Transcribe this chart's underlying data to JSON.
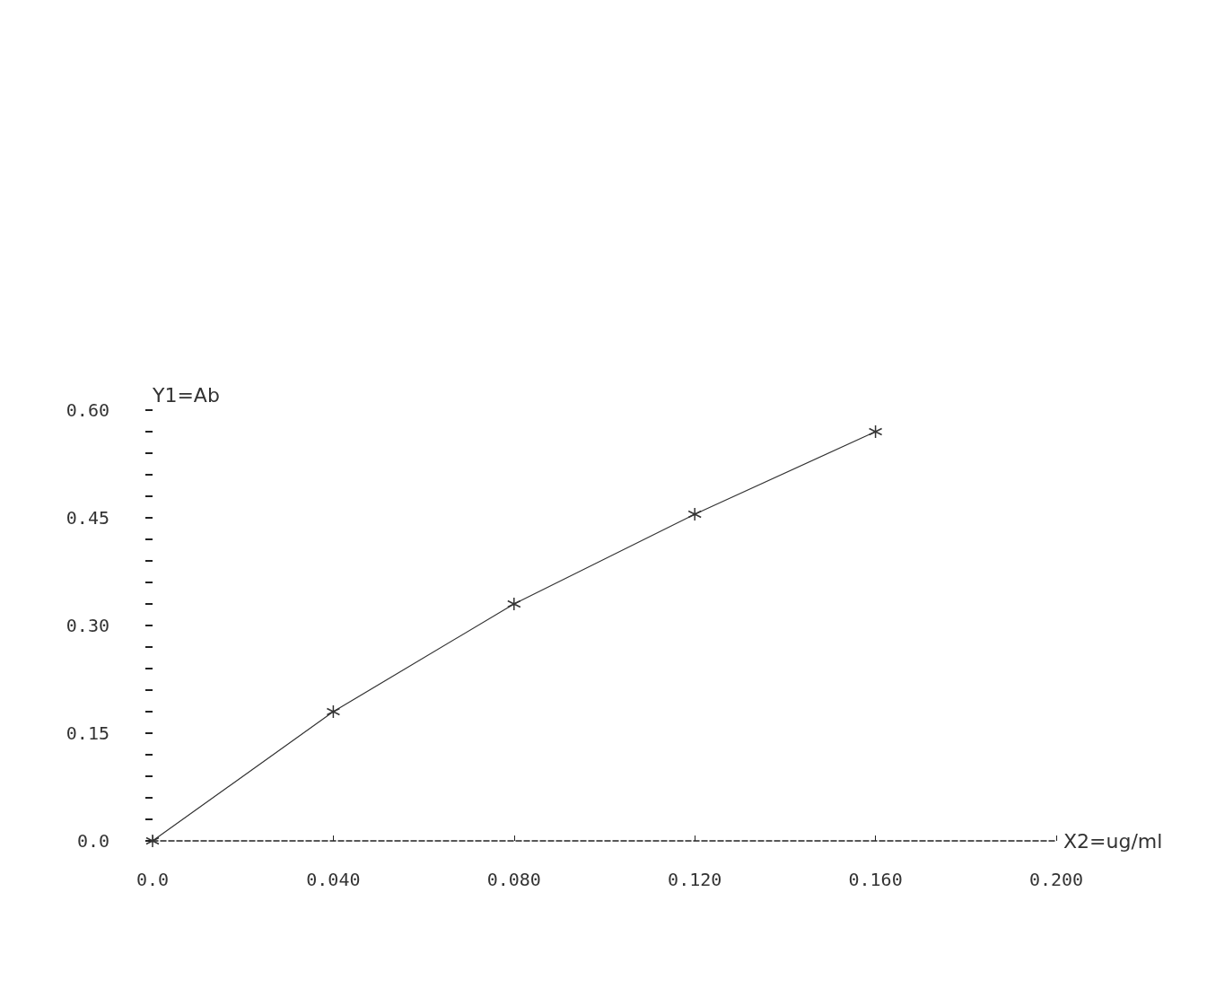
{
  "chart_data": {
    "type": "line",
    "xlabel": "X2=ug/ml",
    "ylabel": "Y1=Ab",
    "x": [
      0,
      0.04,
      0.08,
      0.12,
      0.16
    ],
    "series": [
      {
        "color": "#333333",
        "values": [
          0.0,
          0.18,
          0.33,
          0.455,
          0.57
        ]
      }
    ],
    "xlim": [
      0,
      0.2
    ],
    "xticks": [
      {
        "value": 0,
        "label": "0.0"
      },
      {
        "value": 0.04,
        "label": "0.040"
      },
      {
        "value": 0.08,
        "label": "0.080"
      },
      {
        "value": 0.12,
        "label": "0.120"
      },
      {
        "value": 0.16,
        "label": "0.160"
      },
      {
        "value": 0.2,
        "label": "0.200"
      }
    ],
    "ylim": [
      0,
      0.6
    ],
    "yticks": [
      {
        "value": 0,
        "label": "0.0"
      },
      0.15,
      {
        "value": 0.3,
        "label": "0.30"
      },
      0.45,
      {
        "value": 0.6,
        "label": "0.60"
      }
    ],
    "marker": "cross",
    "line_style": "solid",
    "grid": false
  }
}
